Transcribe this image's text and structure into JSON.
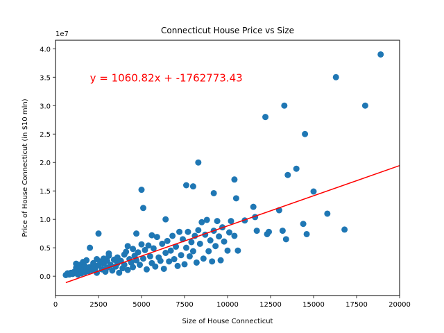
{
  "chart_data": {
    "type": "scatter",
    "title": "Connecticut House Price vs Size",
    "xlabel": "Size of House Connecticut",
    "ylabel": "Price of House Connecticut (in $10 mln)",
    "y_offset_text": "1e7",
    "xlim": [
      0,
      20000
    ],
    "ylim": [
      -3400000,
      41500000
    ],
    "x_ticks": [
      0,
      2500,
      5000,
      7500,
      10000,
      12500,
      15000,
      17500,
      20000
    ],
    "x_tick_labels": [
      "0",
      "2500",
      "5000",
      "7500",
      "10000",
      "12500",
      "15000",
      "17500",
      "20000"
    ],
    "y_ticks": [
      0,
      5000000,
      10000000,
      15000000,
      20000000,
      25000000,
      30000000,
      35000000,
      40000000
    ],
    "y_tick_labels": [
      "0.0",
      "0.5",
      "1.0",
      "1.5",
      "2.0",
      "2.5",
      "3.0",
      "3.5",
      "4.0"
    ],
    "grid": false,
    "point_color": "#1f77b4",
    "regression": {
      "slope": 1060.82,
      "intercept": -1762773.43,
      "x_range": [
        600,
        20000
      ],
      "color": "#ff0000",
      "equation": "y = 1060.82x + -1762773.43",
      "equation_x": 2000,
      "equation_y": 35000000,
      "equation_color": "#ff0000"
    },
    "points": [
      [
        600,
        200000
      ],
      [
        700,
        500000
      ],
      [
        800,
        300000
      ],
      [
        900,
        600000
      ],
      [
        1000,
        400000
      ],
      [
        1100,
        800000
      ],
      [
        1200,
        1500000
      ],
      [
        1200,
        2200000
      ],
      [
        1300,
        300000
      ],
      [
        1300,
        1200000
      ],
      [
        1400,
        2000000
      ],
      [
        1400,
        900000
      ],
      [
        1500,
        1600000
      ],
      [
        1500,
        500000
      ],
      [
        1600,
        2500000
      ],
      [
        1600,
        1100000
      ],
      [
        1700,
        1800000
      ],
      [
        1700,
        700000
      ],
      [
        1800,
        2800000
      ],
      [
        1800,
        1300000
      ],
      [
        1900,
        900000
      ],
      [
        2000,
        5000000
      ],
      [
        2000,
        1600000
      ],
      [
        2100,
        1100000
      ],
      [
        2200,
        2300000
      ],
      [
        2300,
        1400000
      ],
      [
        2400,
        3000000
      ],
      [
        2400,
        600000
      ],
      [
        2500,
        7500000
      ],
      [
        2500,
        1900000
      ],
      [
        2600,
        2600000
      ],
      [
        2700,
        1200000
      ],
      [
        2800,
        3100000
      ],
      [
        2800,
        2200000
      ],
      [
        2900,
        800000
      ],
      [
        3000,
        2700000
      ],
      [
        3000,
        1500000
      ],
      [
        3100,
        3600000
      ],
      [
        3100,
        4000000
      ],
      [
        3200,
        2000000
      ],
      [
        3300,
        1000000
      ],
      [
        3400,
        2900000
      ],
      [
        3500,
        1700000
      ],
      [
        3600,
        2300000
      ],
      [
        3600,
        3300000
      ],
      [
        3700,
        600000
      ],
      [
        3800,
        2700000
      ],
      [
        3900,
        1400000
      ],
      [
        4000,
        3800000
      ],
      [
        4000,
        2000000
      ],
      [
        4100,
        4300000
      ],
      [
        4200,
        5300000
      ],
      [
        4200,
        1100000
      ],
      [
        4300,
        3000000
      ],
      [
        4400,
        2400000
      ],
      [
        4500,
        4800000
      ],
      [
        4500,
        1600000
      ],
      [
        4600,
        3600000
      ],
      [
        4700,
        7500000
      ],
      [
        4700,
        2800000
      ],
      [
        4800,
        4200000
      ],
      [
        4900,
        2000000
      ],
      [
        5000,
        15200000
      ],
      [
        5000,
        5600000
      ],
      [
        5100,
        12000000
      ],
      [
        5100,
        3100000
      ],
      [
        5200,
        4600000
      ],
      [
        5300,
        1200000
      ],
      [
        5400,
        5400000
      ],
      [
        5500,
        3500000
      ],
      [
        5600,
        7200000
      ],
      [
        5600,
        2300000
      ],
      [
        5700,
        4900000
      ],
      [
        5800,
        1700000
      ],
      [
        5900,
        6900000
      ],
      [
        6000,
        3300000
      ],
      [
        6100,
        2700000
      ],
      [
        6200,
        5700000
      ],
      [
        6300,
        1300000
      ],
      [
        6400,
        10000000
      ],
      [
        6400,
        4100000
      ],
      [
        6500,
        6200000
      ],
      [
        6600,
        2600000
      ],
      [
        6700,
        4500000
      ],
      [
        6800,
        7100000
      ],
      [
        6900,
        3000000
      ],
      [
        7000,
        5200000
      ],
      [
        7100,
        1800000
      ],
      [
        7200,
        7800000
      ],
      [
        7300,
        3700000
      ],
      [
        7400,
        6500000
      ],
      [
        7500,
        2100000
      ],
      [
        7600,
        16000000
      ],
      [
        7600,
        5000000
      ],
      [
        7700,
        7800000
      ],
      [
        7800,
        3500000
      ],
      [
        7900,
        6000000
      ],
      [
        8000,
        15800000
      ],
      [
        8000,
        4400000
      ],
      [
        8100,
        7100000
      ],
      [
        8200,
        2400000
      ],
      [
        8300,
        8100000
      ],
      [
        8300,
        20000000
      ],
      [
        8400,
        5700000
      ],
      [
        8500,
        9500000
      ],
      [
        8600,
        3100000
      ],
      [
        8700,
        7300000
      ],
      [
        8800,
        9900000
      ],
      [
        8900,
        4400000
      ],
      [
        9000,
        6300000
      ],
      [
        9100,
        2600000
      ],
      [
        9200,
        14600000
      ],
      [
        9200,
        8000000
      ],
      [
        9300,
        5300000
      ],
      [
        9400,
        9700000
      ],
      [
        9500,
        7000000
      ],
      [
        9600,
        2800000
      ],
      [
        9700,
        8600000
      ],
      [
        9800,
        6100000
      ],
      [
        10000,
        4500000
      ],
      [
        10100,
        7700000
      ],
      [
        10200,
        9700000
      ],
      [
        10400,
        17000000
      ],
      [
        10400,
        7100000
      ],
      [
        10500,
        13700000
      ],
      [
        10600,
        4500000
      ],
      [
        11000,
        9800000
      ],
      [
        11500,
        12200000
      ],
      [
        11600,
        10400000
      ],
      [
        11700,
        8000000
      ],
      [
        12200,
        28000000
      ],
      [
        12300,
        7400000
      ],
      [
        12400,
        7800000
      ],
      [
        13000,
        11600000
      ],
      [
        13200,
        8000000
      ],
      [
        13300,
        30000000
      ],
      [
        13400,
        6500000
      ],
      [
        13500,
        17800000
      ],
      [
        14000,
        18900000
      ],
      [
        14400,
        9200000
      ],
      [
        14500,
        25000000
      ],
      [
        14600,
        7400000
      ],
      [
        15000,
        14900000
      ],
      [
        15800,
        11000000
      ],
      [
        16300,
        35000000
      ],
      [
        16800,
        8200000
      ],
      [
        18000,
        30000000
      ],
      [
        18900,
        39000000
      ]
    ]
  }
}
